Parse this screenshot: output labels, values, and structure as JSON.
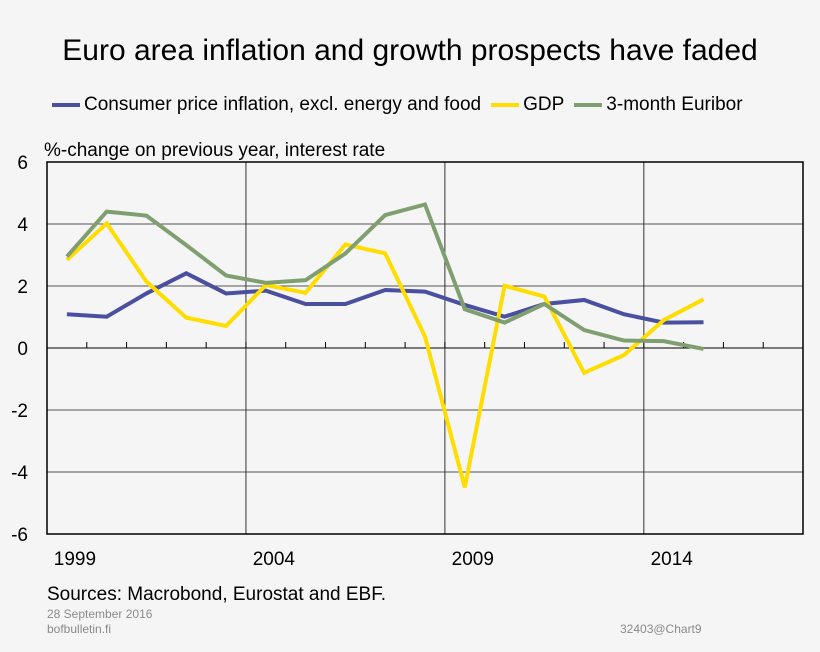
{
  "title": "Euro area inflation and growth prospects have faded",
  "footer": {
    "sources": "Sources: Macrobond, Eurostat and EBF.",
    "date": "28 September 2016",
    "site": "bofbulletin.fi",
    "code": "32403@Chart9"
  },
  "chart_data": {
    "type": "line",
    "title": "Euro area inflation and growth prospects have faded",
    "ylabel": "%-change on previous year, interest rate",
    "xlabel": "",
    "x": [
      1999,
      2000,
      2001,
      2002,
      2003,
      2004,
      2005,
      2006,
      2007,
      2008,
      2009,
      2010,
      2011,
      2012,
      2013,
      2014,
      2015
    ],
    "xlim": [
      1998.5,
      2017.5
    ],
    "ylim": [
      -6,
      6
    ],
    "yticks": [
      6,
      4,
      2,
      0,
      -2,
      -4,
      -6
    ],
    "xtick_labels": [
      "1999",
      "2004",
      "2009",
      "2014"
    ],
    "grid": true,
    "legend_position": "top",
    "series": [
      {
        "name": "Consumer price inflation, excl. energy and food",
        "color": "#4b4f9f",
        "values": [
          1.09,
          1.01,
          1.76,
          2.41,
          1.76,
          1.85,
          1.42,
          1.42,
          1.87,
          1.82,
          1.39,
          1.01,
          1.42,
          1.55,
          1.09,
          0.82,
          0.83
        ]
      },
      {
        "name": "GDP",
        "color": "#ffdd00",
        "values": [
          2.84,
          4.02,
          2.14,
          0.98,
          0.71,
          2.03,
          1.78,
          3.34,
          3.05,
          0.37,
          -4.5,
          2.01,
          1.66,
          -0.8,
          -0.23,
          0.9,
          1.57
        ]
      },
      {
        "name": "3-month Euribor",
        "color": "#809f70",
        "values": [
          2.95,
          4.4,
          4.27,
          3.32,
          2.34,
          2.1,
          2.19,
          3.05,
          4.29,
          4.63,
          1.25,
          0.82,
          1.42,
          0.58,
          0.24,
          0.22,
          -0.03
        ]
      }
    ]
  }
}
